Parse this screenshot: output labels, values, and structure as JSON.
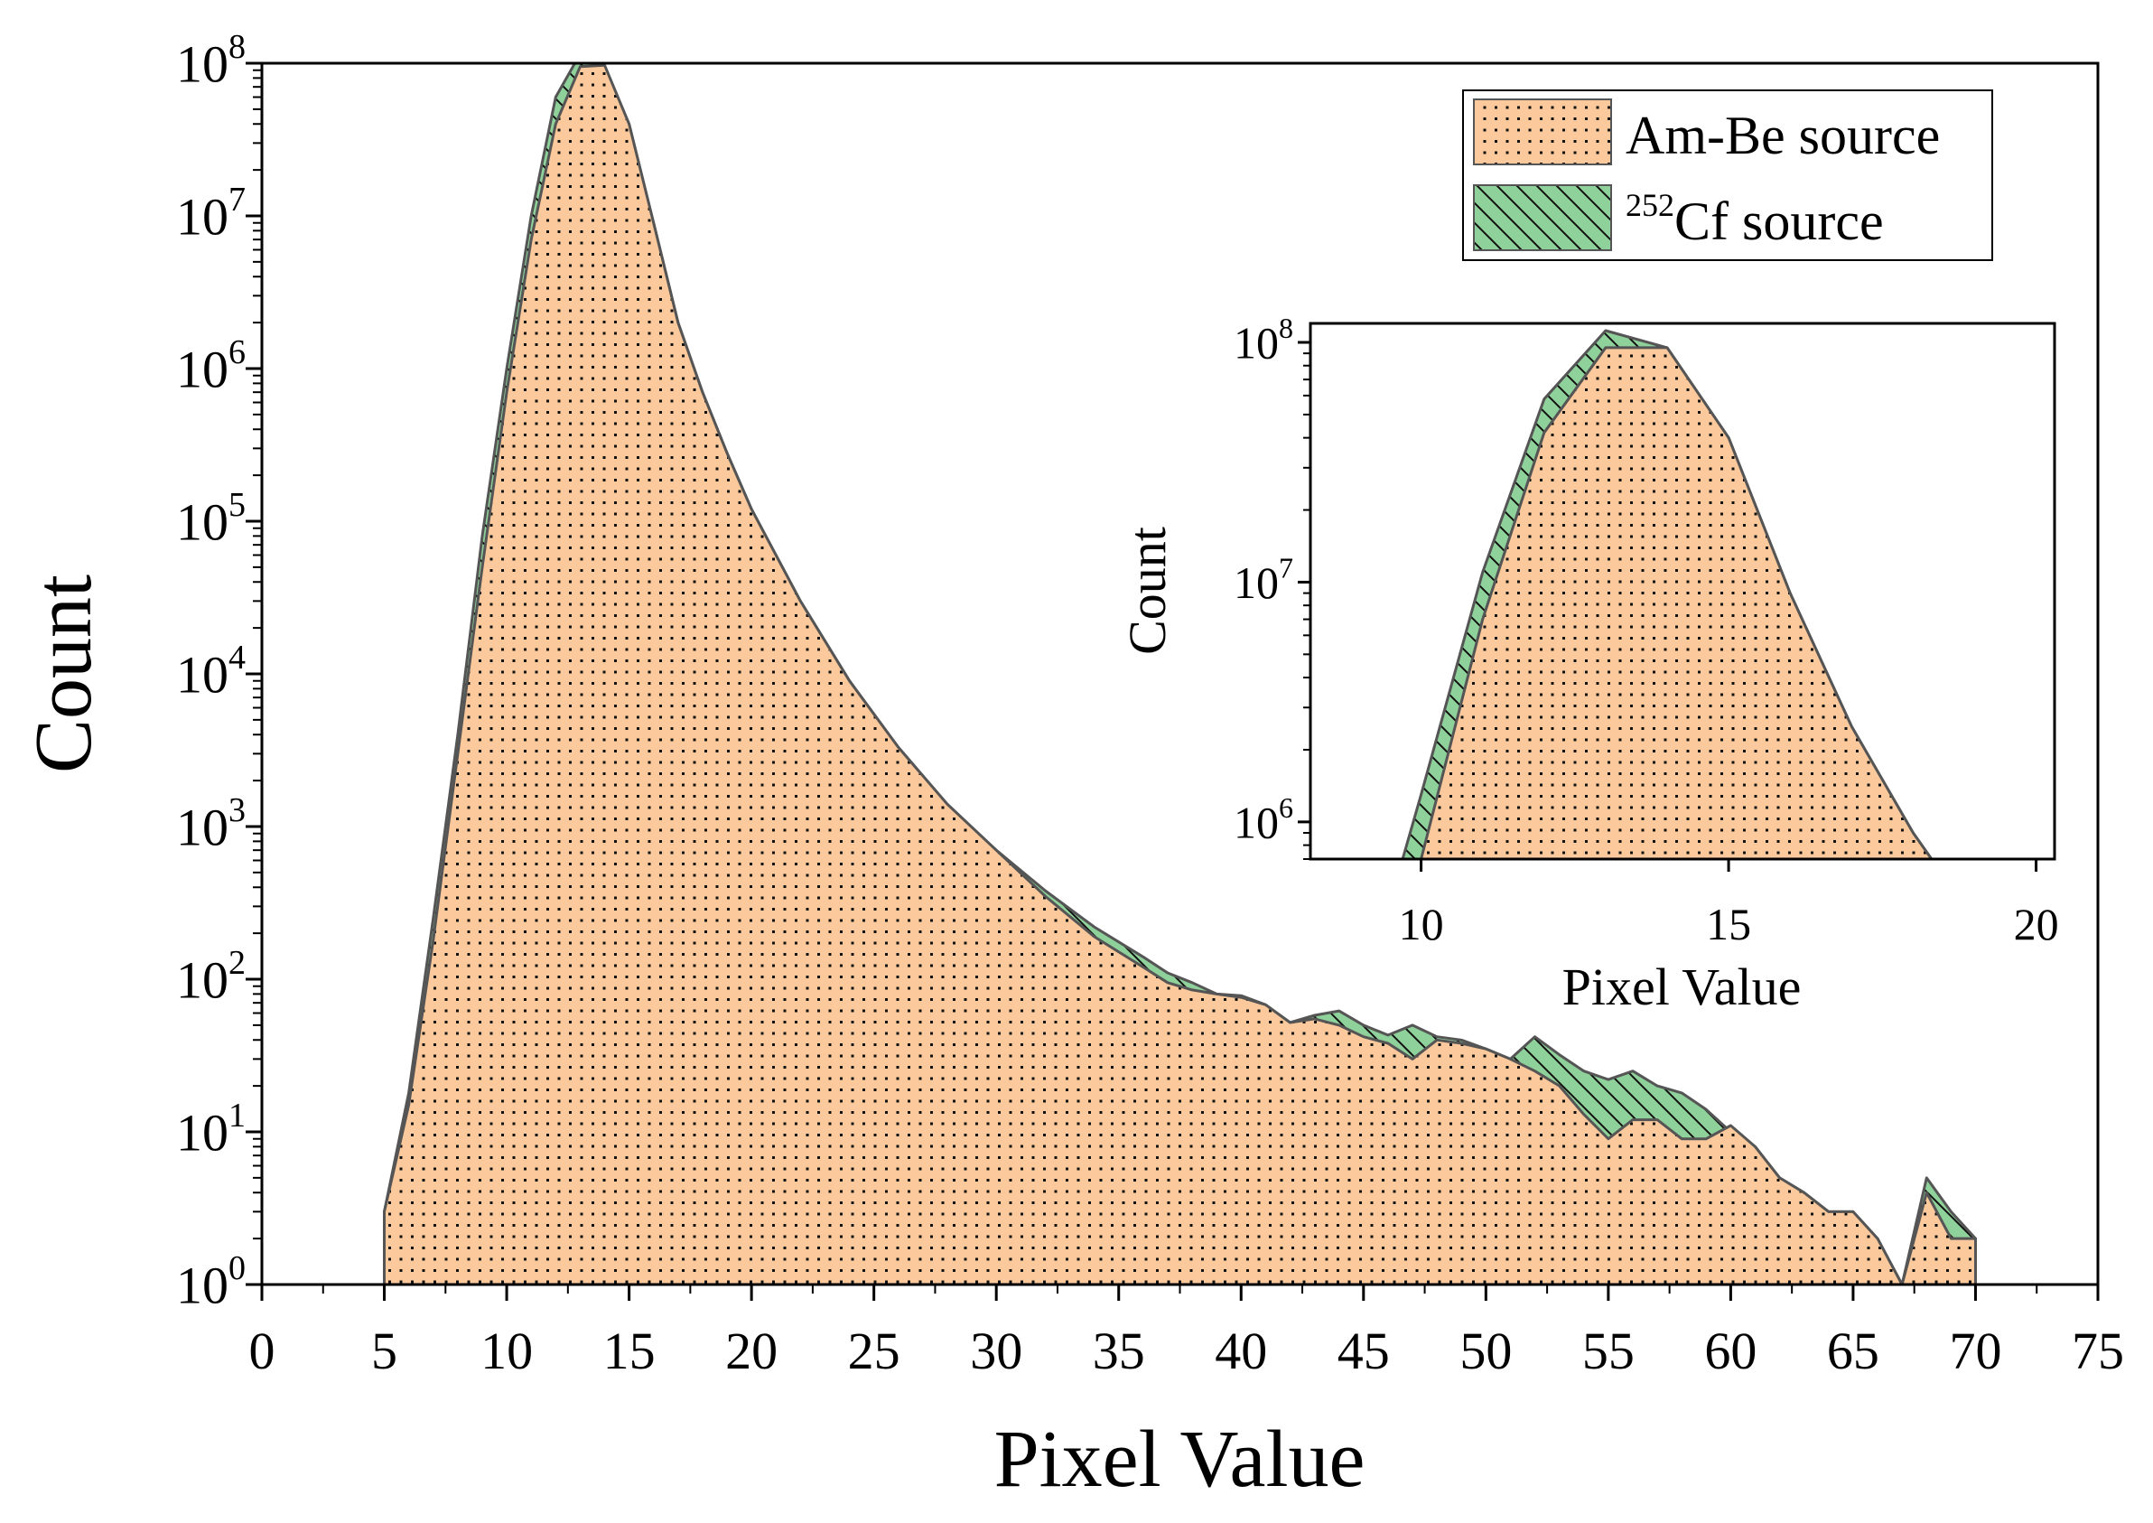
{
  "chart_data": [
    {
      "type": "area",
      "title": "",
      "xlabel": "Pixel Value",
      "ylabel": "Count",
      "xlim": [
        0,
        75
      ],
      "ylim": [
        1,
        100000000
      ],
      "yscale": "log",
      "xticks": [
        0,
        5,
        10,
        15,
        20,
        25,
        30,
        35,
        40,
        45,
        50,
        55,
        60,
        65,
        70,
        75
      ],
      "yticks": [
        {
          "value": 1,
          "base": "10",
          "exp": "0"
        },
        {
          "value": 10,
          "base": "10",
          "exp": "1"
        },
        {
          "value": 100,
          "base": "10",
          "exp": "2"
        },
        {
          "value": 1000,
          "base": "10",
          "exp": "3"
        },
        {
          "value": 10000,
          "base": "10",
          "exp": "4"
        },
        {
          "value": 100000,
          "base": "10",
          "exp": "5"
        },
        {
          "value": 1000000,
          "base": "10",
          "exp": "6"
        },
        {
          "value": 10000000,
          "base": "10",
          "exp": "7"
        },
        {
          "value": 100000000,
          "base": "10",
          "exp": "8"
        }
      ],
      "grid": false,
      "legend_position": "top-right",
      "series": [
        {
          "name": "252Cf source",
          "label_sup": "252",
          "label_text": "Cf source",
          "color": "#8fd19a",
          "pattern": "diagonal-hatch",
          "x": [
            5,
            6,
            7,
            8,
            9,
            10,
            11,
            12,
            13,
            14,
            15,
            16,
            17,
            18,
            19,
            20,
            22,
            24,
            26,
            28,
            30,
            32,
            34,
            36,
            37,
            38,
            39,
            40,
            41,
            42,
            43,
            44,
            45,
            46,
            47,
            48,
            49,
            50,
            51,
            52,
            53,
            54,
            55,
            56,
            57,
            58,
            59,
            60,
            61,
            62,
            63,
            64,
            65,
            66,
            67,
            68,
            69,
            70
          ],
          "y": [
            3,
            18,
            250,
            4000,
            80000,
            1000000,
            10000000,
            60000000,
            115000000,
            95000000,
            40000000,
            9000000,
            2000000,
            700000,
            280000,
            120000,
            30000,
            9000,
            3300,
            1400,
            700,
            380,
            220,
            140,
            110,
            95,
            80,
            78,
            68,
            52,
            58,
            62,
            50,
            43,
            50,
            42,
            40,
            35,
            30,
            42,
            32,
            25,
            22,
            25,
            20,
            18,
            14,
            10,
            8,
            5,
            4,
            3,
            3,
            2,
            1,
            5,
            3,
            2
          ]
        },
        {
          "name": "Am-Be source",
          "label_text": "Am-Be source",
          "color": "#fbc99b",
          "pattern": "dots",
          "x": [
            5,
            6,
            7,
            8,
            9,
            10,
            11,
            12,
            13,
            14,
            15,
            16,
            17,
            18,
            19,
            20,
            22,
            24,
            26,
            28,
            30,
            32,
            34,
            36,
            37,
            38,
            39,
            40,
            41,
            42,
            43,
            44,
            45,
            46,
            47,
            48,
            49,
            50,
            51,
            52,
            53,
            54,
            55,
            56,
            57,
            58,
            59,
            60,
            61,
            62,
            63,
            64,
            65,
            66,
            67,
            68,
            69,
            70
          ],
          "y": [
            3,
            15,
            180,
            3000,
            50000,
            700000,
            7000000,
            40000000,
            95000000,
            97000000,
            40000000,
            9000000,
            2000000,
            700000,
            280000,
            120000,
            30000,
            9000,
            3300,
            1400,
            700,
            350,
            190,
            120,
            95,
            85,
            80,
            76,
            68,
            52,
            55,
            50,
            42,
            38,
            30,
            40,
            38,
            35,
            30,
            25,
            20,
            13,
            9,
            12,
            12,
            9,
            9,
            11,
            8,
            5,
            4,
            3,
            3,
            2,
            1,
            4,
            2,
            2
          ]
        }
      ]
    },
    {
      "type": "area",
      "title": "",
      "xlabel": "Pixel Value",
      "ylabel": "Count",
      "xlim": [
        8.2,
        20.3
      ],
      "ylim": [
        700000,
        120000000
      ],
      "yscale": "log",
      "xticks": [
        10,
        15,
        20
      ],
      "yticks": [
        {
          "value": 1000000,
          "base": "10",
          "exp": "6"
        },
        {
          "value": 10000000,
          "base": "10",
          "exp": "7"
        },
        {
          "value": 100000000,
          "base": "10",
          "exp": "8"
        }
      ],
      "grid": false,
      "series": [
        {
          "name": "252Cf source",
          "color": "#8fd19a",
          "pattern": "diagonal-hatch",
          "x": [
            9.7,
            10,
            11,
            12,
            13,
            14,
            15,
            16,
            17,
            18,
            18.3
          ],
          "y": [
            700000,
            1300000,
            11000000,
            58000000,
            112000000,
            95000000,
            40000000,
            9000000,
            2500000,
            900000,
            700000
          ]
        },
        {
          "name": "Am-Be source",
          "color": "#fbc99b",
          "pattern": "dots",
          "x": [
            10,
            11,
            12,
            13,
            14,
            15,
            16,
            17,
            18,
            18.3
          ],
          "y": [
            700000,
            7000000,
            42000000,
            95000000,
            95000000,
            40000000,
            9000000,
            2500000,
            900000,
            700000
          ]
        }
      ]
    }
  ]
}
